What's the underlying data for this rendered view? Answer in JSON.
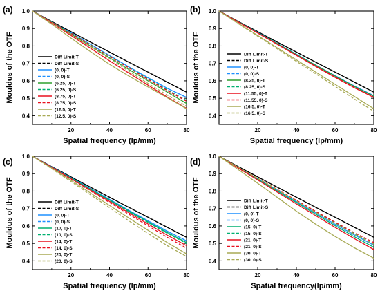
{
  "colors": {
    "diff": "#000000",
    "c00": "#1e90ff",
    "c2": "#00b070",
    "c_green": "#2ea02e",
    "c_red": "#e8101e",
    "c_olive": "#a8aa55"
  },
  "chart_data": [
    {
      "type": "line",
      "panel_label": "(a)",
      "xlabel": "Spatial frequency (lp/mm)",
      "ylabel": "Mouldus of the OTF",
      "xlim": [
        0,
        80
      ],
      "ylim": [
        0.35,
        1.0
      ],
      "xticks": [
        20,
        40,
        60,
        80
      ],
      "yticks": [
        0.4,
        0.5,
        0.6,
        0.7,
        0.8,
        0.9,
        1.0
      ],
      "ytick_labels": [
        "0.4",
        "0.5",
        "0.6",
        "0.7",
        "0.8",
        "0.9",
        "1.0"
      ],
      "legend_position": "bottom-left",
      "x": [
        0,
        10,
        20,
        30,
        40,
        50,
        60,
        70,
        80
      ],
      "series": [
        {
          "name": "Diff Limit-T",
          "color": "#000000",
          "dash": false,
          "values": [
            1.0,
            0.94,
            0.882,
            0.823,
            0.765,
            0.707,
            0.65,
            0.592,
            0.535
          ]
        },
        {
          "name": "Diff Limit-S",
          "color": "#000000",
          "dash": true,
          "values": [
            1.0,
            0.94,
            0.882,
            0.823,
            0.765,
            0.707,
            0.65,
            0.592,
            0.535
          ]
        },
        {
          "name": "(0, 0)-T",
          "color": "#1e90ff",
          "dash": false,
          "values": [
            1.0,
            0.937,
            0.875,
            0.81,
            0.745,
            0.68,
            0.618,
            0.557,
            0.505
          ]
        },
        {
          "name": "(0, 0)-S",
          "color": "#1e90ff",
          "dash": true,
          "values": [
            1.0,
            0.937,
            0.875,
            0.81,
            0.745,
            0.68,
            0.618,
            0.557,
            0.505
          ]
        },
        {
          "name": "(6.25, 0)-T",
          "color": "#2ea02e",
          "dash": false,
          "values": [
            1.0,
            0.935,
            0.868,
            0.8,
            0.732,
            0.665,
            0.6,
            0.535,
            0.47
          ]
        },
        {
          "name": "(6.25, 0)-S",
          "color": "#00b070",
          "dash": true,
          "values": [
            1.0,
            0.937,
            0.873,
            0.808,
            0.742,
            0.677,
            0.612,
            0.549,
            0.488
          ]
        },
        {
          "name": "(8.75, 0)-T",
          "color": "#e8101e",
          "dash": false,
          "values": [
            1.0,
            0.932,
            0.86,
            0.788,
            0.715,
            0.645,
            0.575,
            0.507,
            0.442
          ]
        },
        {
          "name": "(8.75, 0)-S",
          "color": "#e8101e",
          "dash": true,
          "values": [
            1.0,
            0.936,
            0.872,
            0.806,
            0.74,
            0.674,
            0.608,
            0.544,
            0.483
          ]
        },
        {
          "name": "(12.5, 0)-T",
          "color": "#a8aa55",
          "dash": false,
          "values": [
            1.0,
            0.925,
            0.845,
            0.768,
            0.695,
            0.628,
            0.565,
            0.503,
            0.44
          ]
        },
        {
          "name": "(12.5, 0)-S",
          "color": "#a8aa55",
          "dash": true,
          "values": [
            1.0,
            0.934,
            0.866,
            0.797,
            0.727,
            0.655,
            0.585,
            0.518,
            0.455
          ]
        }
      ]
    },
    {
      "type": "line",
      "panel_label": "(b)",
      "xlabel": "Spatial frequency (lp/mm)",
      "ylabel": "Mouldus of the OTF",
      "xlim": [
        0,
        80
      ],
      "ylim": [
        0.35,
        1.0
      ],
      "xticks": [
        20,
        40,
        60,
        80
      ],
      "yticks": [
        0.4,
        0.5,
        0.6,
        0.7,
        0.8,
        0.9,
        1.0
      ],
      "ytick_labels": [
        "0.4",
        "0.5",
        "0.6",
        "0.7",
        "0.8",
        "0.9",
        "1.0"
      ],
      "legend_position": "top-right",
      "x": [
        0,
        10,
        20,
        30,
        40,
        50,
        60,
        70,
        80
      ],
      "series": [
        {
          "name": "Diff Limit-T",
          "color": "#000000",
          "dash": false,
          "values": [
            1.0,
            0.94,
            0.882,
            0.823,
            0.765,
            0.707,
            0.65,
            0.592,
            0.535
          ]
        },
        {
          "name": "Diff Limit-S",
          "color": "#000000",
          "dash": true,
          "values": [
            1.0,
            0.94,
            0.882,
            0.823,
            0.765,
            0.707,
            0.65,
            0.592,
            0.535
          ]
        },
        {
          "name": "(0, 0)-T",
          "color": "#1e90ff",
          "dash": false,
          "values": [
            1.0,
            0.938,
            0.877,
            0.815,
            0.753,
            0.69,
            0.63,
            0.57,
            0.515
          ]
        },
        {
          "name": "(0, 0)-S",
          "color": "#1e90ff",
          "dash": true,
          "values": [
            1.0,
            0.938,
            0.877,
            0.815,
            0.753,
            0.69,
            0.63,
            0.57,
            0.515
          ]
        },
        {
          "name": "(8.25, 0)-T",
          "color": "#2ea02e",
          "dash": false,
          "values": [
            1.0,
            0.938,
            0.876,
            0.814,
            0.751,
            0.689,
            0.628,
            0.567,
            0.512
          ]
        },
        {
          "name": "(8.25, 0)-S",
          "color": "#00b070",
          "dash": true,
          "values": [
            1.0,
            0.938,
            0.876,
            0.813,
            0.75,
            0.687,
            0.626,
            0.565,
            0.51
          ]
        },
        {
          "name": "(11.55, 0)-T",
          "color": "#e8101e",
          "dash": false,
          "values": [
            1.0,
            0.937,
            0.874,
            0.81,
            0.746,
            0.682,
            0.62,
            0.56,
            0.505
          ]
        },
        {
          "name": "(11.55, 0)-S",
          "color": "#e8101e",
          "dash": true,
          "values": [
            1.0,
            0.937,
            0.874,
            0.81,
            0.747,
            0.684,
            0.622,
            0.562,
            0.507
          ]
        },
        {
          "name": "(16.5, 0)-T",
          "color": "#a8aa55",
          "dash": false,
          "values": [
            1.0,
            0.93,
            0.86,
            0.79,
            0.72,
            0.65,
            0.58,
            0.51,
            0.44
          ]
        },
        {
          "name": "(16.5, 0)-S",
          "color": "#a8aa55",
          "dash": true,
          "values": [
            1.0,
            0.928,
            0.856,
            0.784,
            0.712,
            0.64,
            0.568,
            0.496,
            0.425
          ]
        }
      ]
    },
    {
      "type": "line",
      "panel_label": "(c)",
      "xlabel": "Spatial frequency (lp/mm)",
      "ylabel": "Mouldus of the OTF",
      "xlim": [
        0,
        80
      ],
      "ylim": [
        0.35,
        1.0
      ],
      "xticks": [
        20,
        40,
        60,
        80
      ],
      "yticks": [
        0.4,
        0.5,
        0.6,
        0.7,
        0.8,
        0.9,
        1.0
      ],
      "ytick_labels": [
        "0.4",
        "0.5",
        "0.6",
        "0.7",
        "0.8",
        "0.9",
        "1.0"
      ],
      "legend_position": "bottom-left",
      "x": [
        0,
        10,
        20,
        30,
        40,
        50,
        60,
        70,
        80
      ],
      "series": [
        {
          "name": "Diff Limit-T",
          "color": "#000000",
          "dash": false,
          "values": [
            1.0,
            0.94,
            0.882,
            0.823,
            0.765,
            0.707,
            0.65,
            0.592,
            0.535
          ]
        },
        {
          "name": "Diff Limit-S",
          "color": "#000000",
          "dash": true,
          "values": [
            1.0,
            0.94,
            0.882,
            0.823,
            0.765,
            0.707,
            0.65,
            0.592,
            0.535
          ]
        },
        {
          "name": "(0, 0)-T",
          "color": "#1e90ff",
          "dash": false,
          "values": [
            1.0,
            0.938,
            0.877,
            0.815,
            0.753,
            0.69,
            0.63,
            0.57,
            0.515
          ]
        },
        {
          "name": "(0, 0)-S",
          "color": "#1e90ff",
          "dash": true,
          "values": [
            1.0,
            0.938,
            0.877,
            0.815,
            0.753,
            0.69,
            0.63,
            0.57,
            0.515
          ]
        },
        {
          "name": "(10, 0)-T",
          "color": "#00b070",
          "dash": false,
          "values": [
            1.0,
            0.937,
            0.875,
            0.812,
            0.749,
            0.686,
            0.624,
            0.563,
            0.505
          ]
        },
        {
          "name": "(10, 0)-S",
          "color": "#00b070",
          "dash": true,
          "values": [
            1.0,
            0.937,
            0.874,
            0.81,
            0.747,
            0.683,
            0.62,
            0.558,
            0.5
          ]
        },
        {
          "name": "(14, 0)-T",
          "color": "#e8101e",
          "dash": false,
          "values": [
            1.0,
            0.936,
            0.871,
            0.806,
            0.741,
            0.676,
            0.611,
            0.547,
            0.487
          ]
        },
        {
          "name": "(14, 0)-S",
          "color": "#e8101e",
          "dash": true,
          "values": [
            1.0,
            0.935,
            0.869,
            0.802,
            0.735,
            0.668,
            0.601,
            0.535,
            0.473
          ]
        },
        {
          "name": "(20, 0)-T",
          "color": "#a8aa55",
          "dash": false,
          "values": [
            1.0,
            0.932,
            0.862,
            0.79,
            0.718,
            0.646,
            0.575,
            0.505,
            0.44
          ]
        },
        {
          "name": "(20, 0)-S",
          "color": "#a8aa55",
          "dash": true,
          "values": [
            1.0,
            0.928,
            0.855,
            0.78,
            0.705,
            0.63,
            0.557,
            0.487,
            0.425
          ]
        }
      ]
    },
    {
      "type": "line",
      "panel_label": "(d)",
      "xlabel": "Spatial frequency(lp/mm)",
      "ylabel": "Mouldus of the OTF",
      "xlim": [
        0,
        80
      ],
      "ylim": [
        0.35,
        1.0
      ],
      "xticks": [
        20,
        40,
        60,
        80
      ],
      "yticks": [
        0.4,
        0.5,
        0.6,
        0.7,
        0.8,
        0.9,
        1.0
      ],
      "ytick_labels": [
        "0.4",
        "0.5",
        "0.6",
        "0.7",
        "0.8",
        "0.9",
        "1.0"
      ],
      "legend_position": "bottom-right",
      "x": [
        0,
        10,
        20,
        30,
        40,
        50,
        60,
        70,
        80
      ],
      "series": [
        {
          "name": "Diff Limit-T",
          "color": "#000000",
          "dash": false,
          "values": [
            1.0,
            0.94,
            0.882,
            0.823,
            0.765,
            0.707,
            0.65,
            0.592,
            0.535
          ]
        },
        {
          "name": "Diff Limit-S",
          "color": "#000000",
          "dash": true,
          "values": [
            1.0,
            0.94,
            0.882,
            0.823,
            0.765,
            0.707,
            0.65,
            0.592,
            0.535
          ]
        },
        {
          "name": "(0, 0)-T",
          "color": "#1e90ff",
          "dash": false,
          "values": [
            1.0,
            0.935,
            0.87,
            0.805,
            0.74,
            0.675,
            0.61,
            0.548,
            0.49
          ]
        },
        {
          "name": "(0, 0)-S",
          "color": "#1e90ff",
          "dash": true,
          "values": [
            1.0,
            0.935,
            0.87,
            0.805,
            0.74,
            0.675,
            0.61,
            0.548,
            0.49
          ]
        },
        {
          "name": "(15, 0)-T",
          "color": "#00b070",
          "dash": false,
          "values": [
            1.0,
            0.934,
            0.868,
            0.801,
            0.735,
            0.668,
            0.602,
            0.538,
            0.478
          ]
        },
        {
          "name": "(15, 0)-S",
          "color": "#00b070",
          "dash": true,
          "values": [
            1.0,
            0.936,
            0.872,
            0.808,
            0.744,
            0.68,
            0.617,
            0.555,
            0.497
          ]
        },
        {
          "name": "(21, 0)-T",
          "color": "#e8101e",
          "dash": false,
          "values": [
            1.0,
            0.932,
            0.864,
            0.795,
            0.727,
            0.659,
            0.592,
            0.527,
            0.465
          ]
        },
        {
          "name": "(21, 0)-S",
          "color": "#e8101e",
          "dash": true,
          "values": [
            1.0,
            0.937,
            0.874,
            0.81,
            0.747,
            0.684,
            0.622,
            0.561,
            0.505
          ]
        },
        {
          "name": "(30, 0)-T",
          "color": "#a8aa55",
          "dash": false,
          "values": [
            1.0,
            0.923,
            0.845,
            0.765,
            0.685,
            0.61,
            0.54,
            0.475,
            0.415
          ]
        },
        {
          "name": "(30, 0)-S",
          "color": "#a8aa55",
          "dash": true,
          "values": [
            1.0,
            0.937,
            0.873,
            0.808,
            0.743,
            0.678,
            0.614,
            0.552,
            0.495
          ]
        }
      ]
    }
  ]
}
